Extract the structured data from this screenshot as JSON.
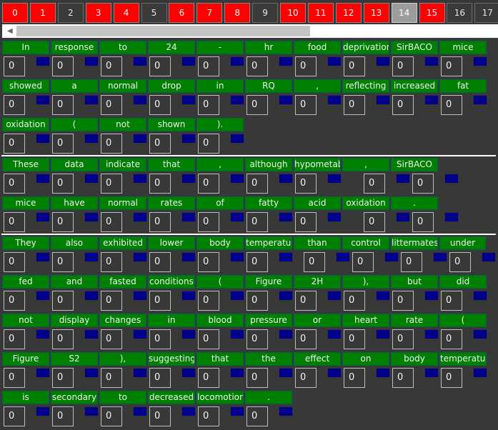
{
  "tabs": [
    {
      "label": "0",
      "state": "red"
    },
    {
      "label": "1",
      "state": "red"
    },
    {
      "label": "2",
      "state": "gray"
    },
    {
      "label": "3",
      "state": "red"
    },
    {
      "label": "4",
      "state": "red"
    },
    {
      "label": "5",
      "state": "gray"
    },
    {
      "label": "6",
      "state": "red"
    },
    {
      "label": "7",
      "state": "red"
    },
    {
      "label": "8",
      "state": "red"
    },
    {
      "label": "9",
      "state": "gray"
    },
    {
      "label": "10",
      "state": "red"
    },
    {
      "label": "11",
      "state": "red"
    },
    {
      "label": "12",
      "state": "red"
    },
    {
      "label": "13",
      "state": "red"
    },
    {
      "label": "14",
      "state": "active"
    },
    {
      "label": "15",
      "state": "red"
    },
    {
      "label": "16",
      "state": "gray"
    },
    {
      "label": "17",
      "state": "gray"
    }
  ],
  "scroll_left_arrow": "◀",
  "box_value": "0",
  "colors": {
    "word": "#008000",
    "marker": "#00008b",
    "tab_red": "#ff0000",
    "tab_active": "#9c9c9c",
    "background": "#383838"
  },
  "sentences": [
    {
      "rows": [
        [
          "In",
          "response",
          "to",
          "24",
          "-",
          "hr",
          "food",
          "deprivation",
          "SirBACO",
          "mice"
        ],
        [
          "showed",
          "a",
          "normal",
          "drop",
          "in",
          "RQ",
          ",",
          "reflecting",
          "increased",
          "fat"
        ],
        [
          "oxidation",
          "(",
          "not",
          "shown",
          ")."
        ]
      ]
    },
    {
      "rows": [
        [
          "These",
          "data",
          "indicate",
          "that",
          ",",
          "although",
          "hypometabolic",
          ",",
          "SirBACO"
        ],
        [
          "mice",
          "have",
          "normal",
          "rates",
          "of",
          "fatty",
          "acid",
          "oxidation",
          "."
        ]
      ]
    },
    {
      "rows": [
        [
          "They",
          "also",
          "exhibited",
          "lower",
          "body",
          "temperature",
          "than",
          "control",
          "littermates",
          "under"
        ],
        [
          "fed",
          "and",
          "fasted",
          "conditions",
          "(",
          "Figure",
          "2H",
          "),",
          "but",
          "did"
        ],
        [
          "not",
          "display",
          "changes",
          "in",
          "blood",
          "pressure",
          "or",
          "heart",
          "rate",
          "("
        ],
        [
          "Figure",
          "S2",
          "),",
          "suggesting",
          "that",
          "the",
          "effect",
          "on",
          "body",
          "temperature"
        ],
        [
          "is",
          "secondary",
          "to",
          "decreased",
          "locomotion",
          "."
        ]
      ]
    }
  ]
}
